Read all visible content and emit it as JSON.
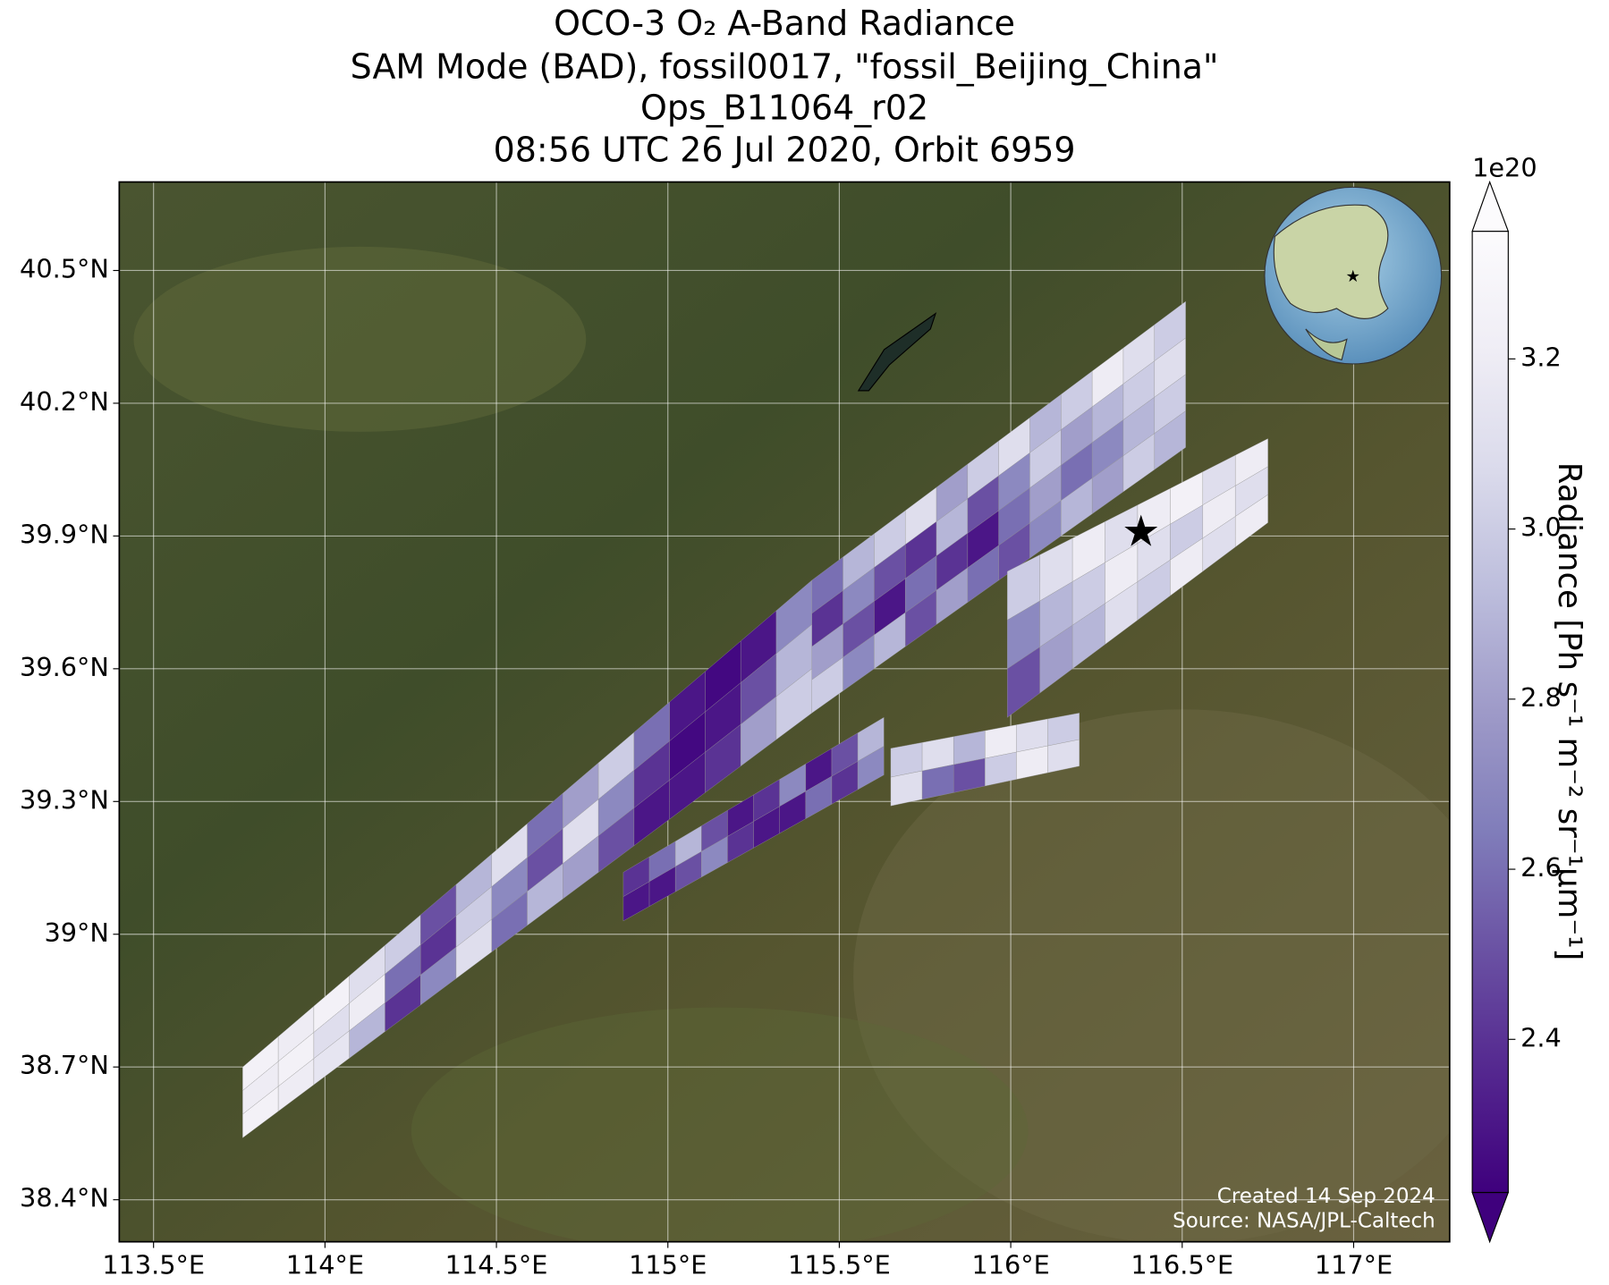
{
  "chart_data": {
    "type": "map",
    "title": [
      "OCO-3 O₂ A-Band Radiance",
      "SAM Mode (BAD), fossil0017, \"fossil_Beijing_China\"",
      "Ops_B11064_r02",
      "08:56 UTC 26 Jul 2020, Orbit 6959"
    ],
    "xlim": [
      113.4,
      117.28
    ],
    "ylim": [
      38.305,
      40.7
    ],
    "xticks": [
      {
        "value": 113.5,
        "label": "113.5°E"
      },
      {
        "value": 114,
        "label": "114°E"
      },
      {
        "value": 114.5,
        "label": "114.5°E"
      },
      {
        "value": 115,
        "label": "115°E"
      },
      {
        "value": 115.5,
        "label": "115.5°E"
      },
      {
        "value": 116,
        "label": "116°E"
      },
      {
        "value": 116.5,
        "label": "116.5°E"
      },
      {
        "value": 117,
        "label": "117°E"
      }
    ],
    "yticks": [
      {
        "value": 38.4,
        "label": "38.4°N"
      },
      {
        "value": 38.7,
        "label": "38.7°N"
      },
      {
        "value": 39,
        "label": "39°N"
      },
      {
        "value": 39.3,
        "label": "39.3°N"
      },
      {
        "value": 39.6,
        "label": "39.6°N"
      },
      {
        "value": 39.9,
        "label": "39.9°N"
      },
      {
        "value": 40.2,
        "label": "40.2°N"
      },
      {
        "value": 40.5,
        "label": "40.5°N"
      }
    ],
    "grid": true,
    "colorbar": {
      "label": "Radiance [Ph s⁻¹ m⁻² sr⁻¹μm⁻¹]",
      "offset_label": "1e20",
      "clim": [
        2.22,
        3.35
      ],
      "ticks": [
        2.4,
        2.6,
        2.8,
        {
          "value": 3,
          "label": "3.0"
        },
        3.2
      ],
      "colormap": [
        "#3f007d",
        "#54278f",
        "#6a51a3",
        "#807dba",
        "#9e9ac8",
        "#bcbddc",
        "#dadaeb",
        "#efedf5",
        "#fcfbfd"
      ]
    },
    "swaths": [
      {
        "lon": [
          113.76,
          115.42
        ],
        "lat_top": [
          38.7,
          39.8
        ],
        "lat_bottom": [
          38.54,
          39.5
        ],
        "values": [
          [
            3.25,
            3.2,
            3.25,
            3.1,
            3.0,
            2.5,
            2.9,
            3.1,
            2.6,
            2.8,
            3.0,
            2.6,
            2.3,
            2.25,
            2.3,
            2.7
          ],
          [
            3.2,
            3.25,
            3.1,
            3.2,
            2.6,
            2.4,
            3.0,
            2.7,
            2.5,
            3.1,
            2.7,
            2.4,
            2.25,
            2.3,
            2.5,
            2.9
          ],
          [
            3.25,
            3.2,
            3.15,
            2.9,
            2.4,
            2.7,
            3.1,
            2.6,
            2.9,
            2.8,
            2.5,
            2.3,
            2.3,
            2.4,
            2.8,
            3.0
          ]
        ]
      },
      {
        "lon": [
          114.87,
          115.63
        ],
        "lat_top": [
          39.14,
          39.49
        ],
        "lat_bottom": [
          39.03,
          39.36
        ],
        "values": [
          [
            2.4,
            2.6,
            2.9,
            2.5,
            2.3,
            2.4,
            2.7,
            2.3,
            2.5,
            2.9
          ],
          [
            2.3,
            2.3,
            2.5,
            2.7,
            2.4,
            2.3,
            2.3,
            2.6,
            2.4,
            2.7
          ]
        ]
      },
      {
        "lon": [
          115.42,
          116.51
        ],
        "lat_top": [
          39.8,
          40.43
        ],
        "lat_bottom": [
          39.5,
          40.1
        ],
        "values": [
          [
            2.6,
            2.9,
            3.0,
            3.1,
            2.8,
            3.0,
            3.1,
            2.9,
            3.0,
            3.2,
            3.1,
            3.0
          ],
          [
            2.4,
            2.7,
            2.5,
            2.4,
            2.9,
            2.5,
            2.7,
            3.0,
            2.8,
            2.9,
            3.0,
            3.1
          ],
          [
            2.8,
            2.5,
            2.3,
            2.6,
            2.4,
            2.3,
            2.6,
            2.8,
            2.6,
            2.7,
            2.9,
            3.0
          ],
          [
            3.0,
            2.7,
            2.9,
            2.5,
            2.8,
            2.6,
            2.5,
            2.7,
            2.9,
            2.8,
            3.0,
            2.9
          ]
        ]
      },
      {
        "lon": [
          115.99,
          116.75
        ],
        "lat_top": [
          39.82,
          40.12
        ],
        "lat_bottom": [
          39.49,
          39.93
        ],
        "values": [
          [
            3.0,
            3.1,
            3.2,
            3.1,
            3.2,
            3.25,
            3.1,
            3.2
          ],
          [
            2.7,
            2.9,
            3.0,
            3.2,
            3.1,
            3.0,
            3.2,
            3.1
          ],
          [
            2.5,
            2.8,
            2.9,
            3.1,
            3.0,
            3.2,
            3.1,
            3.2
          ]
        ]
      },
      {
        "lon": [
          115.65,
          116.2
        ],
        "lat_top": [
          39.42,
          39.5
        ],
        "lat_bottom": [
          39.29,
          39.38
        ],
        "values": [
          [
            3.0,
            3.1,
            2.9,
            3.2,
            3.1,
            3.0
          ],
          [
            3.1,
            2.6,
            2.5,
            3.0,
            3.2,
            3.1
          ]
        ]
      }
    ],
    "target": {
      "lon": 116.38,
      "lat": 39.91,
      "color": "#ff0000"
    },
    "credits": [
      "Created 14 Sep 2024",
      "Source: NASA/JPL-Caltech"
    ]
  }
}
